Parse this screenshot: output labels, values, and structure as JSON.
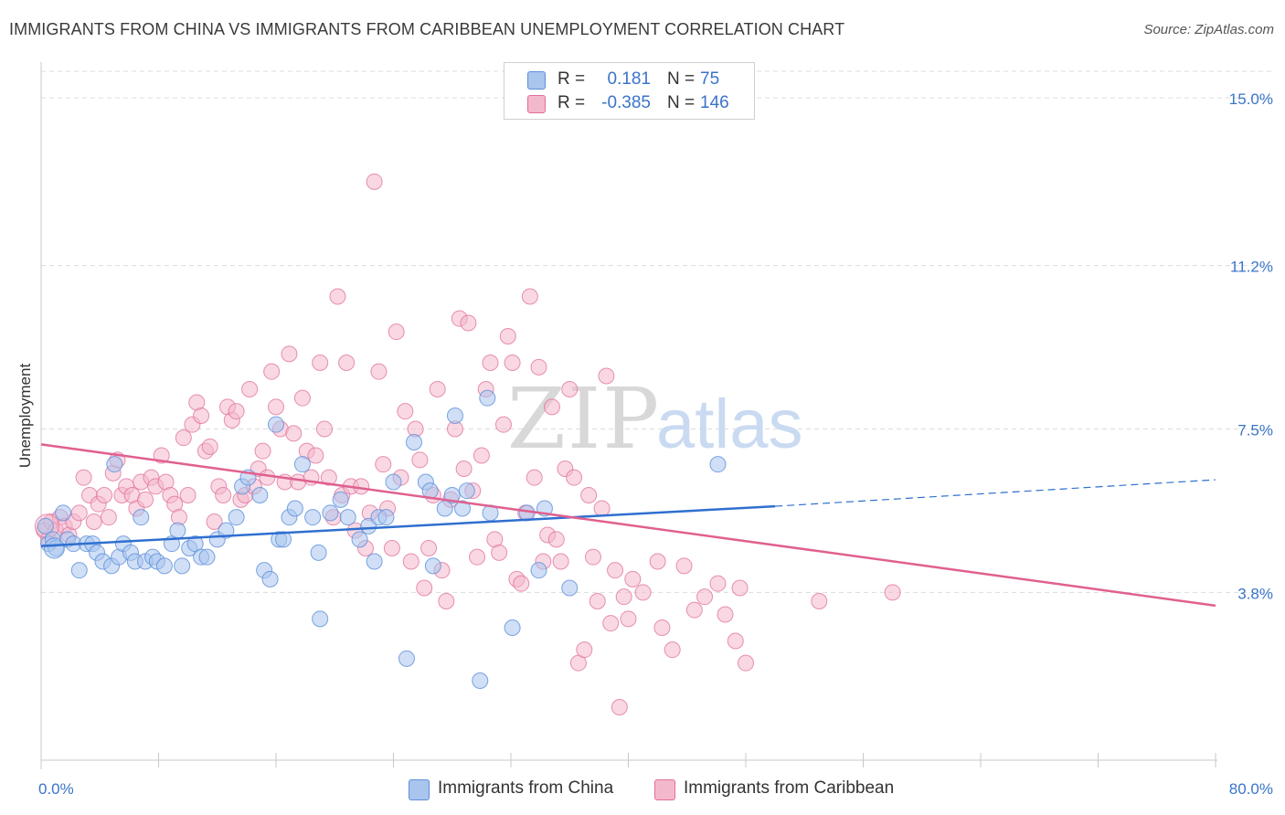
{
  "title": "IMMIGRANTS FROM CHINA VS IMMIGRANTS FROM CARIBBEAN UNEMPLOYMENT CORRELATION CHART",
  "source": "Source: ZipAtlas.com",
  "watermark": {
    "zip": "ZIP",
    "atlas": "atlas"
  },
  "legend": {
    "r_label": "R =",
    "n_label": "N =",
    "rows": [
      {
        "r": "0.181",
        "n": "75"
      },
      {
        "r": "-0.385",
        "n": "146"
      }
    ]
  },
  "colors": {
    "china": "#5b8fd9",
    "china_fill": "#a9c5ee",
    "caribbean": "#e06e9a",
    "caribbean_fill": "#f4b8cc",
    "axis_tick": "#3a74c8"
  },
  "chart_data": {
    "type": "scatter",
    "title": "IMMIGRANTS FROM CHINA VS IMMIGRANTS FROM CARIBBEAN UNEMPLOYMENT CORRELATION CHART",
    "xlabel": "",
    "ylabel": "Unemployment",
    "xlim": [
      0,
      80
    ],
    "ylim": [
      0,
      15.6
    ],
    "x_tick_labels": [
      "0.0%",
      "80.0%"
    ],
    "y_ticks": [
      3.8,
      7.5,
      11.2,
      15.0
    ],
    "y_tick_labels": [
      "3.8%",
      "7.5%",
      "11.2%",
      "15.0%"
    ],
    "grid": true,
    "legend_position": "top-center",
    "series": [
      {
        "name": "Immigrants from China",
        "trend": {
          "x": [
            0,
            50
          ],
          "y": [
            4.85,
            5.75
          ],
          "dashed_to": [
            80,
            6.35
          ]
        },
        "points": [
          [
            0.3,
            5.3
          ],
          [
            0.5,
            4.9
          ],
          [
            0.8,
            5.0
          ],
          [
            1.0,
            4.8
          ],
          [
            1.5,
            5.6
          ],
          [
            1.8,
            5.0
          ],
          [
            2.2,
            4.9
          ],
          [
            2.6,
            4.3
          ],
          [
            3.1,
            4.9
          ],
          [
            3.5,
            4.9
          ],
          [
            3.8,
            4.7
          ],
          [
            4.2,
            4.5
          ],
          [
            4.8,
            4.4
          ],
          [
            5.0,
            6.7
          ],
          [
            5.3,
            4.6
          ],
          [
            5.6,
            4.9
          ],
          [
            6.1,
            4.7
          ],
          [
            6.4,
            4.5
          ],
          [
            6.8,
            5.5
          ],
          [
            7.1,
            4.5
          ],
          [
            7.6,
            4.6
          ],
          [
            7.9,
            4.5
          ],
          [
            8.4,
            4.4
          ],
          [
            8.9,
            4.9
          ],
          [
            9.3,
            5.2
          ],
          [
            9.6,
            4.4
          ],
          [
            10.1,
            4.8
          ],
          [
            10.5,
            4.9
          ],
          [
            10.9,
            4.6
          ],
          [
            11.3,
            4.6
          ],
          [
            12.0,
            5.0
          ],
          [
            12.6,
            5.2
          ],
          [
            13.3,
            5.5
          ],
          [
            13.7,
            6.2
          ],
          [
            14.1,
            6.4
          ],
          [
            14.9,
            6.0
          ],
          [
            15.2,
            4.3
          ],
          [
            15.6,
            4.1
          ],
          [
            16.0,
            7.6
          ],
          [
            16.2,
            5.0
          ],
          [
            16.5,
            5.0
          ],
          [
            16.9,
            5.5
          ],
          [
            17.3,
            5.7
          ],
          [
            17.8,
            6.7
          ],
          [
            18.5,
            5.5
          ],
          [
            18.9,
            4.7
          ],
          [
            19.0,
            3.2
          ],
          [
            19.7,
            5.6
          ],
          [
            20.4,
            5.9
          ],
          [
            20.9,
            5.5
          ],
          [
            21.7,
            5.0
          ],
          [
            22.3,
            5.3
          ],
          [
            22.7,
            4.5
          ],
          [
            23.0,
            5.5
          ],
          [
            23.5,
            5.5
          ],
          [
            24.0,
            6.3
          ],
          [
            24.9,
            2.3
          ],
          [
            25.4,
            7.2
          ],
          [
            26.2,
            6.3
          ],
          [
            26.5,
            6.1
          ],
          [
            26.7,
            4.4
          ],
          [
            27.5,
            5.7
          ],
          [
            28.0,
            6.0
          ],
          [
            28.2,
            7.8
          ],
          [
            28.7,
            5.7
          ],
          [
            29.0,
            6.1
          ],
          [
            29.9,
            1.8
          ],
          [
            30.4,
            8.2
          ],
          [
            30.6,
            5.6
          ],
          [
            32.1,
            3.0
          ],
          [
            33.1,
            5.6
          ],
          [
            33.9,
            4.3
          ],
          [
            34.3,
            5.7
          ],
          [
            36.0,
            3.9
          ],
          [
            46.1,
            6.7
          ]
        ]
      },
      {
        "name": "Immigrants from Caribbean",
        "trend": {
          "x": [
            0,
            80
          ],
          "y": [
            7.15,
            3.5
          ]
        },
        "points": [
          [
            0.2,
            5.2
          ],
          [
            0.5,
            5.0
          ],
          [
            0.7,
            5.4
          ],
          [
            1.0,
            5.2
          ],
          [
            1.3,
            5.5
          ],
          [
            1.6,
            5.3
          ],
          [
            1.9,
            5.1
          ],
          [
            2.2,
            5.4
          ],
          [
            2.6,
            5.6
          ],
          [
            2.9,
            6.4
          ],
          [
            3.3,
            6.0
          ],
          [
            3.6,
            5.4
          ],
          [
            3.9,
            5.8
          ],
          [
            4.3,
            6.0
          ],
          [
            4.6,
            5.5
          ],
          [
            4.9,
            6.5
          ],
          [
            5.2,
            6.8
          ],
          [
            5.5,
            6.0
          ],
          [
            5.8,
            6.2
          ],
          [
            6.2,
            6.0
          ],
          [
            6.5,
            5.7
          ],
          [
            6.8,
            6.3
          ],
          [
            7.1,
            5.9
          ],
          [
            7.5,
            6.4
          ],
          [
            7.8,
            6.2
          ],
          [
            8.2,
            6.9
          ],
          [
            8.5,
            6.3
          ],
          [
            8.8,
            6.0
          ],
          [
            9.1,
            5.8
          ],
          [
            9.4,
            5.5
          ],
          [
            9.7,
            7.3
          ],
          [
            10.0,
            6.0
          ],
          [
            10.3,
            7.6
          ],
          [
            10.6,
            8.1
          ],
          [
            10.9,
            7.8
          ],
          [
            11.2,
            7.0
          ],
          [
            11.5,
            7.1
          ],
          [
            11.8,
            5.4
          ],
          [
            12.1,
            6.2
          ],
          [
            12.4,
            6.0
          ],
          [
            12.7,
            8.0
          ],
          [
            13.0,
            7.7
          ],
          [
            13.3,
            7.9
          ],
          [
            13.6,
            5.9
          ],
          [
            13.9,
            6.0
          ],
          [
            14.2,
            8.4
          ],
          [
            14.5,
            6.2
          ],
          [
            14.8,
            6.6
          ],
          [
            15.1,
            7.0
          ],
          [
            15.4,
            6.4
          ],
          [
            15.7,
            8.8
          ],
          [
            16.0,
            8.0
          ],
          [
            16.3,
            7.5
          ],
          [
            16.6,
            6.3
          ],
          [
            16.9,
            9.2
          ],
          [
            17.2,
            7.4
          ],
          [
            17.5,
            6.3
          ],
          [
            17.8,
            8.2
          ],
          [
            18.1,
            7.0
          ],
          [
            18.4,
            6.4
          ],
          [
            18.7,
            6.9
          ],
          [
            19.0,
            9.0
          ],
          [
            19.3,
            7.5
          ],
          [
            19.6,
            6.4
          ],
          [
            19.9,
            5.5
          ],
          [
            20.2,
            10.5
          ],
          [
            20.5,
            6.0
          ],
          [
            20.8,
            9.0
          ],
          [
            21.1,
            6.2
          ],
          [
            21.4,
            5.2
          ],
          [
            21.8,
            6.2
          ],
          [
            22.1,
            4.8
          ],
          [
            22.4,
            5.6
          ],
          [
            22.7,
            13.1
          ],
          [
            23.0,
            8.8
          ],
          [
            23.3,
            6.7
          ],
          [
            23.6,
            5.7
          ],
          [
            23.9,
            4.8
          ],
          [
            24.2,
            9.7
          ],
          [
            24.5,
            6.4
          ],
          [
            24.8,
            7.9
          ],
          [
            25.2,
            4.5
          ],
          [
            25.5,
            7.5
          ],
          [
            25.8,
            6.8
          ],
          [
            26.1,
            3.9
          ],
          [
            26.4,
            4.8
          ],
          [
            26.7,
            6.0
          ],
          [
            27.0,
            8.4
          ],
          [
            27.3,
            4.3
          ],
          [
            27.6,
            3.6
          ],
          [
            27.9,
            5.9
          ],
          [
            28.2,
            7.5
          ],
          [
            28.5,
            10.0
          ],
          [
            28.8,
            6.6
          ],
          [
            29.1,
            9.9
          ],
          [
            29.4,
            6.1
          ],
          [
            29.7,
            4.6
          ],
          [
            30.0,
            6.9
          ],
          [
            30.3,
            8.4
          ],
          [
            30.6,
            9.0
          ],
          [
            30.9,
            5.0
          ],
          [
            31.2,
            4.7
          ],
          [
            31.5,
            7.6
          ],
          [
            31.8,
            9.6
          ],
          [
            32.1,
            9.0
          ],
          [
            32.4,
            4.1
          ],
          [
            32.7,
            4.0
          ],
          [
            33.0,
            5.6
          ],
          [
            33.3,
            10.5
          ],
          [
            33.6,
            6.4
          ],
          [
            33.9,
            8.9
          ],
          [
            34.2,
            4.5
          ],
          [
            34.5,
            5.1
          ],
          [
            34.8,
            8.0
          ],
          [
            35.1,
            5.0
          ],
          [
            35.4,
            4.5
          ],
          [
            35.7,
            6.6
          ],
          [
            36.0,
            8.4
          ],
          [
            36.3,
            6.4
          ],
          [
            36.6,
            2.2
          ],
          [
            37.0,
            2.5
          ],
          [
            37.3,
            6.0
          ],
          [
            37.6,
            4.6
          ],
          [
            37.9,
            3.6
          ],
          [
            38.2,
            5.7
          ],
          [
            38.5,
            8.7
          ],
          [
            38.8,
            3.1
          ],
          [
            39.1,
            4.3
          ],
          [
            39.4,
            1.2
          ],
          [
            39.7,
            3.7
          ],
          [
            40.0,
            3.2
          ],
          [
            40.3,
            4.1
          ],
          [
            41.0,
            3.8
          ],
          [
            42.0,
            4.5
          ],
          [
            42.3,
            3.0
          ],
          [
            43.0,
            2.5
          ],
          [
            43.8,
            4.4
          ],
          [
            44.5,
            3.4
          ],
          [
            45.2,
            3.7
          ],
          [
            46.1,
            4.0
          ],
          [
            46.6,
            3.3
          ],
          [
            47.3,
            2.7
          ],
          [
            47.6,
            3.9
          ],
          [
            48.0,
            2.2
          ],
          [
            53.0,
            3.6
          ],
          [
            58.0,
            3.8
          ]
        ]
      }
    ]
  },
  "bottom_legend": {
    "items": [
      "Immigrants from China",
      "Immigrants from Caribbean"
    ]
  }
}
